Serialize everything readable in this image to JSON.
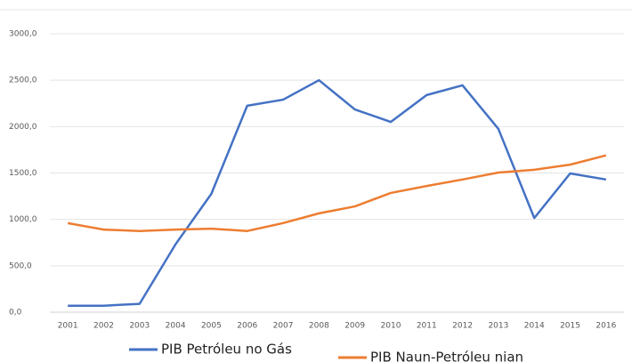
{
  "chart_data": {
    "type": "line",
    "categories": [
      "2001",
      "2002",
      "2003",
      "2004",
      "2005",
      "2006",
      "2007",
      "2008",
      "2009",
      "2010",
      "2011",
      "2012",
      "2013",
      "2014",
      "2015",
      "2016"
    ],
    "series": [
      {
        "name": "PIB Petróleu no Gás",
        "color": "#4472c4",
        "values": [
          70,
          70,
          90,
          730,
          1275,
          2225,
          2290,
          2500,
          2185,
          2050,
          2340,
          2445,
          1975,
          1015,
          1495,
          1430
        ]
      },
      {
        "name": "PIB Naun-Petróleu nian",
        "color": "#ed7d31",
        "values": [
          960,
          890,
          875,
          890,
          900,
          875,
          960,
          1065,
          1140,
          1285,
          1360,
          1430,
          1505,
          1535,
          1590,
          1690
        ]
      }
    ],
    "ylim": [
      0,
      3000
    ],
    "yticks": [
      {
        "value": 0,
        "label": "0,0"
      },
      {
        "value": 500,
        "label": "500,0"
      },
      {
        "value": 1000,
        "label": "1000,0"
      },
      {
        "value": 1500,
        "label": "1500,0"
      },
      {
        "value": 2000,
        "label": "2000,0"
      },
      {
        "value": 2500,
        "label": "2500,0"
      },
      {
        "value": 3000,
        "label": "3000,0"
      }
    ],
    "grid": true
  }
}
